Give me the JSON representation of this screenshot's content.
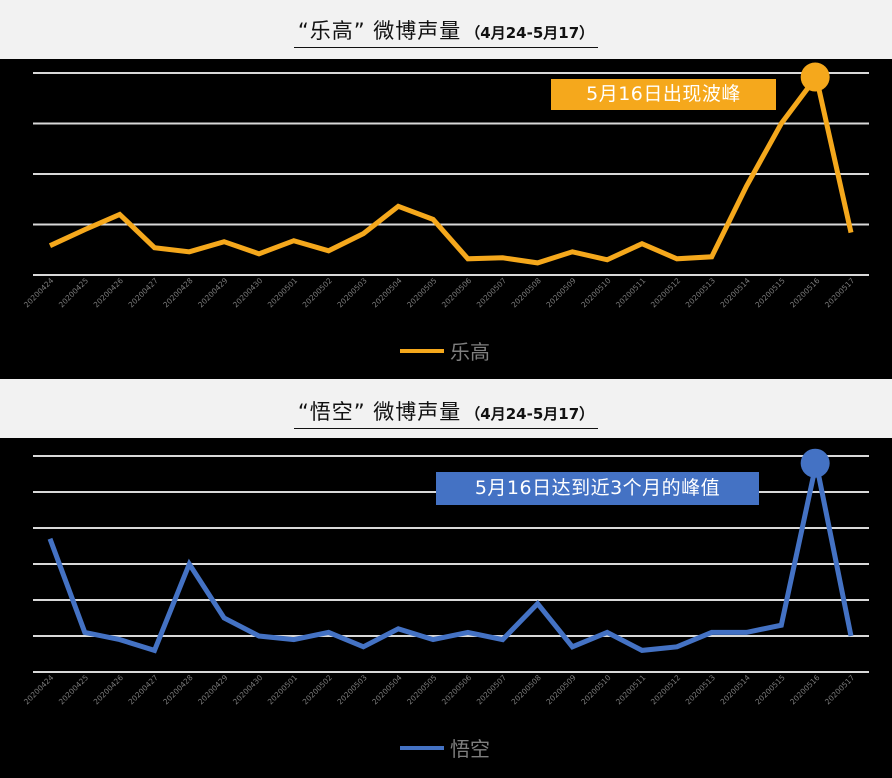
{
  "charts": [
    {
      "header": {
        "title_main": "“乐高” 微博声量",
        "title_sub": "（4月24-5月17）"
      },
      "annotation": "5月16日出现波峰",
      "legend": "乐高",
      "color": "#F5A81C"
    },
    {
      "header": {
        "title_main": "“悟空” 微博声量",
        "title_sub": "（4月24-5月17）"
      },
      "annotation": "5月16日达到近3个月的峰值",
      "legend": "悟空",
      "color": "#4472C4"
    }
  ],
  "chart_data": [
    {
      "type": "line",
      "title": "“乐高” 微博声量（4月24-5月17）",
      "xlabel": "",
      "ylabel": "",
      "grid": true,
      "legend_position": "bottom",
      "categories": [
        "20200424",
        "20200425",
        "20200426",
        "20200427",
        "20200428",
        "20200429",
        "20200430",
        "20200501",
        "20200502",
        "20200503",
        "20200504",
        "20200505",
        "20200506",
        "20200507",
        "20200508",
        "20200509",
        "20200510",
        "20200511",
        "20200512",
        "20200513",
        "20200514",
        "20200515",
        "20200516",
        "20200517"
      ],
      "series": [
        {
          "name": "乐高",
          "color": "#F5A81C",
          "values": [
            29,
            45,
            60,
            27,
            23,
            33,
            21,
            34,
            24,
            41,
            68,
            55,
            16,
            17,
            12,
            23,
            15,
            31,
            16,
            18,
            88,
            150,
            196,
            42
          ]
        }
      ],
      "ylim": [
        0,
        200
      ],
      "grid_lines": 5,
      "annotations": [
        {
          "x": "20200516",
          "text": "5月16日出现波峰"
        }
      ]
    },
    {
      "type": "line",
      "title": "“悟空” 微博声量（4月24-5月17）",
      "xlabel": "",
      "ylabel": "",
      "grid": true,
      "legend_position": "bottom",
      "categories": [
        "20200424",
        "20200425",
        "20200426",
        "20200427",
        "20200428",
        "20200429",
        "20200430",
        "20200501",
        "20200502",
        "20200503",
        "20200504",
        "20200505",
        "20200506",
        "20200507",
        "20200508",
        "20200509",
        "20200510",
        "20200511",
        "20200512",
        "20200513",
        "20200514",
        "20200515",
        "20200516",
        "20200517"
      ],
      "series": [
        {
          "name": "悟空",
          "color": "#4472C4",
          "values": [
            37,
            11,
            9,
            6,
            30,
            15,
            10,
            9,
            11,
            7,
            12,
            9,
            11,
            9,
            19,
            7,
            11,
            6,
            7,
            11,
            11,
            13,
            58,
            10
          ]
        }
      ],
      "ylim": [
        0,
        60
      ],
      "grid_lines": 7,
      "annotations": [
        {
          "x": "20200516",
          "text": "5月16日达到近3个月的峰值"
        }
      ]
    }
  ]
}
